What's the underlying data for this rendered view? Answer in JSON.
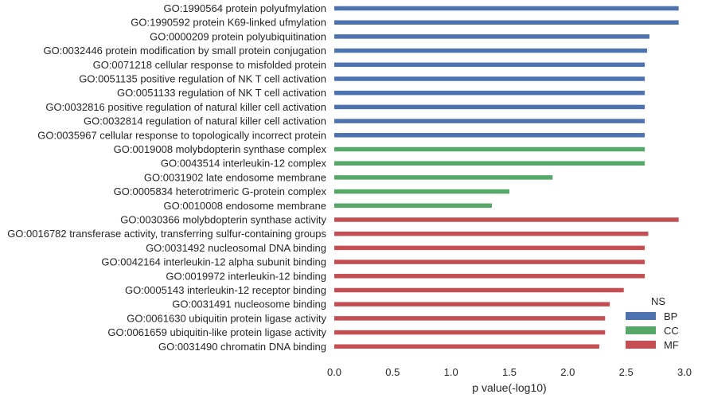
{
  "chart_data": {
    "type": "bar",
    "orientation": "horizontal",
    "xlabel": "p value(-log10)",
    "xlim": [
      0,
      3.0
    ],
    "xticks": [
      "0.0",
      "0.5",
      "1.0",
      "1.5",
      "2.0",
      "2.5",
      "3.0"
    ],
    "grid": false,
    "legend": {
      "title": "NS",
      "placement": "lower-right",
      "entries": [
        {
          "name": "BP",
          "color": "#4c72b0"
        },
        {
          "name": "CC",
          "color": "#55a868"
        },
        {
          "name": "MF",
          "color": "#c44e52"
        }
      ]
    },
    "bars": [
      {
        "label": "GO:1990564 protein polyufmylation",
        "value": 2.95,
        "ns": "BP"
      },
      {
        "label": "GO:1990592 protein K69-linked ufmylation",
        "value": 2.95,
        "ns": "BP"
      },
      {
        "label": "GO:0000209 protein polyubiquitination",
        "value": 2.7,
        "ns": "BP"
      },
      {
        "label": "GO:0032446 protein modification by small protein conjugation",
        "value": 2.68,
        "ns": "BP"
      },
      {
        "label": "GO:0071218 cellular response to misfolded protein",
        "value": 2.66,
        "ns": "BP"
      },
      {
        "label": "GO:0051135 positive regulation of NK T cell activation",
        "value": 2.66,
        "ns": "BP"
      },
      {
        "label": "GO:0051133 regulation of NK T cell activation",
        "value": 2.66,
        "ns": "BP"
      },
      {
        "label": "GO:0032816 positive regulation of natural killer cell activation",
        "value": 2.66,
        "ns": "BP"
      },
      {
        "label": "GO:0032814 regulation of natural killer cell activation",
        "value": 2.66,
        "ns": "BP"
      },
      {
        "label": "GO:0035967 cellular response to topologically incorrect protein",
        "value": 2.66,
        "ns": "BP"
      },
      {
        "label": "GO:0019008 molybdopterin synthase complex",
        "value": 2.66,
        "ns": "CC"
      },
      {
        "label": "GO:0043514 interleukin-12 complex",
        "value": 2.66,
        "ns": "CC"
      },
      {
        "label": "GO:0031902 late endosome membrane",
        "value": 1.87,
        "ns": "CC"
      },
      {
        "label": "GO:0005834 heterotrimeric G-protein complex",
        "value": 1.5,
        "ns": "CC"
      },
      {
        "label": "GO:0010008 endosome membrane",
        "value": 1.35,
        "ns": "CC"
      },
      {
        "label": "GO:0030366 molybdopterin synthase activity",
        "value": 2.95,
        "ns": "MF"
      },
      {
        "label": "GO:0016782 transferase activity, transferring sulfur-containing groups",
        "value": 2.69,
        "ns": "MF"
      },
      {
        "label": "GO:0031492 nucleosomal DNA binding",
        "value": 2.66,
        "ns": "MF"
      },
      {
        "label": "GO:0042164 interleukin-12 alpha subunit binding",
        "value": 2.66,
        "ns": "MF"
      },
      {
        "label": "GO:0019972 interleukin-12 binding",
        "value": 2.66,
        "ns": "MF"
      },
      {
        "label": "GO:0005143 interleukin-12 receptor binding",
        "value": 2.48,
        "ns": "MF"
      },
      {
        "label": "GO:0031491 nucleosome binding",
        "value": 2.36,
        "ns": "MF"
      },
      {
        "label": "GO:0061630 ubiquitin protein ligase activity",
        "value": 2.32,
        "ns": "MF"
      },
      {
        "label": "GO:0061659 ubiquitin-like protein ligase activity",
        "value": 2.32,
        "ns": "MF"
      },
      {
        "label": "GO:0031490 chromatin DNA binding",
        "value": 2.27,
        "ns": "MF"
      }
    ]
  }
}
